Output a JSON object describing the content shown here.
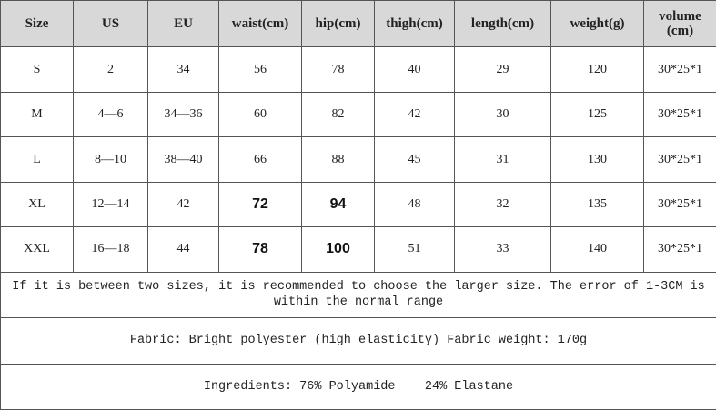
{
  "table": {
    "header": [
      "Size",
      "US",
      "EU",
      "waist(cm)",
      "hip(cm)",
      "thigh(cm)",
      "length(cm)",
      "weight(g)",
      "volume (cm)"
    ],
    "rows": [
      [
        "S",
        "2",
        "34",
        "56",
        "78",
        "40",
        "29",
        "120",
        "30*25*1"
      ],
      [
        "M",
        "4—6",
        "34—36",
        "60",
        "82",
        "42",
        "30",
        "125",
        "30*25*1"
      ],
      [
        "L",
        "8—10",
        "38—40",
        "66",
        "88",
        "45",
        "31",
        "130",
        "30*25*1"
      ],
      [
        "XL",
        "12—14",
        "42",
        "72",
        "94",
        "48",
        "32",
        "135",
        "30*25*1"
      ],
      [
        "XXL",
        "16—18",
        "44",
        "78",
        "100",
        "51",
        "33",
        "140",
        "30*25*1"
      ]
    ],
    "notes": [
      "If it is between two sizes, it is recommended to choose the larger size. The error of 1-3CM is within the normal range",
      "Fabric: Bright polyester (high elasticity) Fabric weight: 170g",
      "Ingredients: 76% Polyamide    24% Elastane"
    ]
  }
}
